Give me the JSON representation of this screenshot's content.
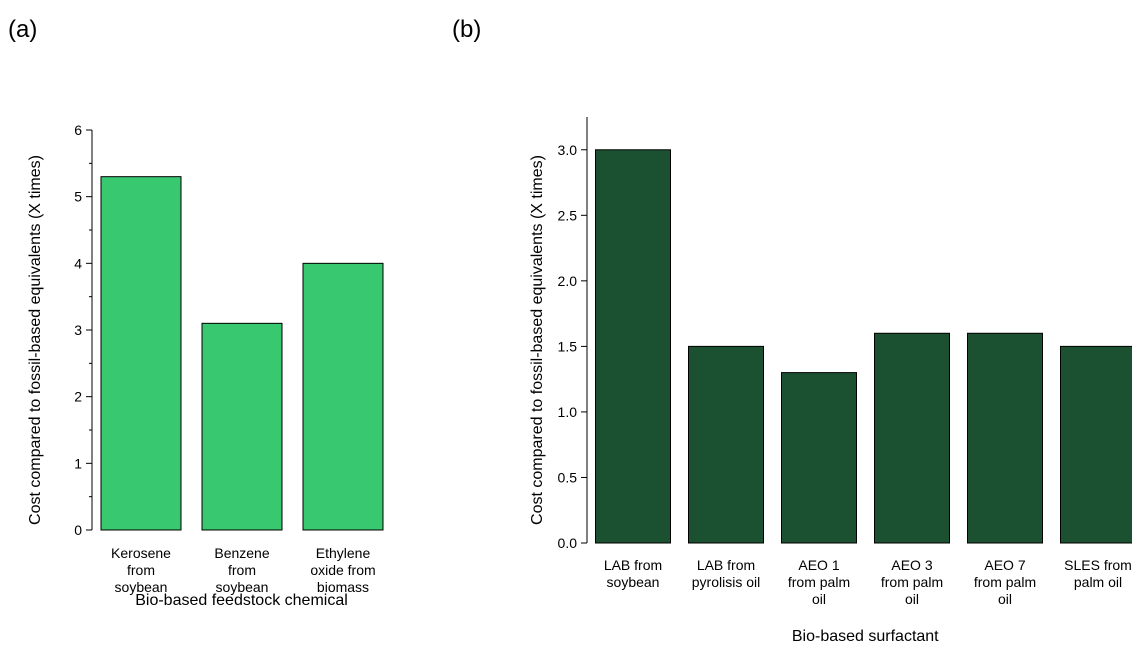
{
  "panels": {
    "a_label": "(a)",
    "b_label": "(b)"
  },
  "chart_data": [
    {
      "type": "bar",
      "categories": [
        [
          "Kerosene",
          "from",
          "soybean"
        ],
        [
          "Benzene",
          "from",
          "soybean"
        ],
        [
          "Ethylene",
          "oxide from",
          "biomass"
        ]
      ],
      "values": [
        5.3,
        3.1,
        4.0
      ],
      "xlabel": "Bio-based feedstock chemical",
      "ylabel": "Cost compared to fossil-based equivalents (X times)",
      "ylim": [
        0,
        6
      ],
      "yticks": [
        0,
        1,
        2,
        3,
        4,
        5,
        6
      ],
      "bar_color": "#38c870",
      "grid": false
    },
    {
      "type": "bar",
      "categories": [
        [
          "LAB from",
          "soybean"
        ],
        [
          "LAB from",
          "pyrolisis oil"
        ],
        [
          "AEO 1",
          "from palm",
          "oil"
        ],
        [
          "AEO 3",
          "from palm",
          "oil"
        ],
        [
          "AEO 7",
          "from palm",
          "oil"
        ],
        [
          "SLES from",
          "palm oil"
        ]
      ],
      "values": [
        3.0,
        1.5,
        1.3,
        1.6,
        1.6,
        1.5
      ],
      "xlabel": "Bio-based surfactant",
      "ylabel": "Cost compared to fossil-based equivalents (X times)",
      "ylim": [
        0,
        3.25
      ],
      "yticks": [
        "0.0",
        "0.5",
        "1.0",
        "1.5",
        "2.0",
        "2.5",
        "3.0"
      ],
      "bar_color": "#1b5131",
      "grid": false
    }
  ]
}
